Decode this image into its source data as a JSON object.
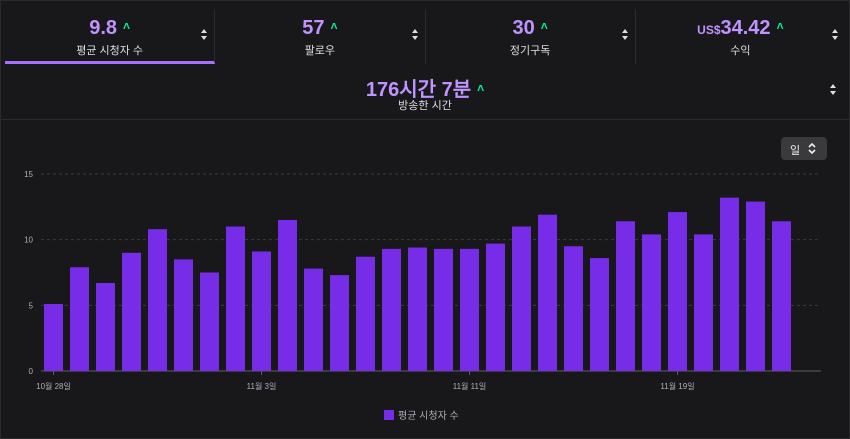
{
  "stats": [
    {
      "prefix": "",
      "value": "9.8",
      "label": "평균 시청자 수",
      "trend": "˄"
    },
    {
      "prefix": "",
      "value": "57",
      "label": "팔로우",
      "trend": "˄"
    },
    {
      "prefix": "",
      "value": "30",
      "label": "정기구독",
      "trend": "˄"
    },
    {
      "prefix": "US$",
      "value": "34.42",
      "label": "수익",
      "trend": "˄"
    }
  ],
  "headline": {
    "value": "176시간 7분",
    "label": "방송한 시간",
    "trend": "˄"
  },
  "period_select": {
    "value": "일"
  },
  "colors": {
    "accent": "#bf94ff",
    "bar": "#772ce8",
    "trend_up": "#00f593",
    "active_tab_underline": "#a970ff"
  },
  "icons": {
    "sort": "sort-arrows-icon",
    "trend": "arrow-up-icon",
    "dropdown": "chevron-up-down-icon"
  },
  "chart_data": {
    "type": "bar",
    "ylim": [
      0,
      15
    ],
    "yticks": [
      0,
      5,
      10,
      15
    ],
    "grid": true,
    "x_tick_labels": [
      {
        "index": 0,
        "label": "10월 28일"
      },
      {
        "index": 8,
        "label": "11월 3일"
      },
      {
        "index": 16,
        "label": "11월 11일"
      },
      {
        "index": 24,
        "label": "11월 19일"
      }
    ],
    "series": [
      {
        "name": "평균 시청자 수",
        "values": [
          5.1,
          7.9,
          6.7,
          9.0,
          10.8,
          8.5,
          7.5,
          11.0,
          9.1,
          11.5,
          7.8,
          7.3,
          8.7,
          9.3,
          9.4,
          9.3,
          9.3,
          9.7,
          11.0,
          11.9,
          9.5,
          8.6,
          11.4,
          10.4,
          12.1,
          10.4,
          13.2,
          12.9,
          11.4
        ]
      }
    ],
    "legend": "bottom"
  }
}
